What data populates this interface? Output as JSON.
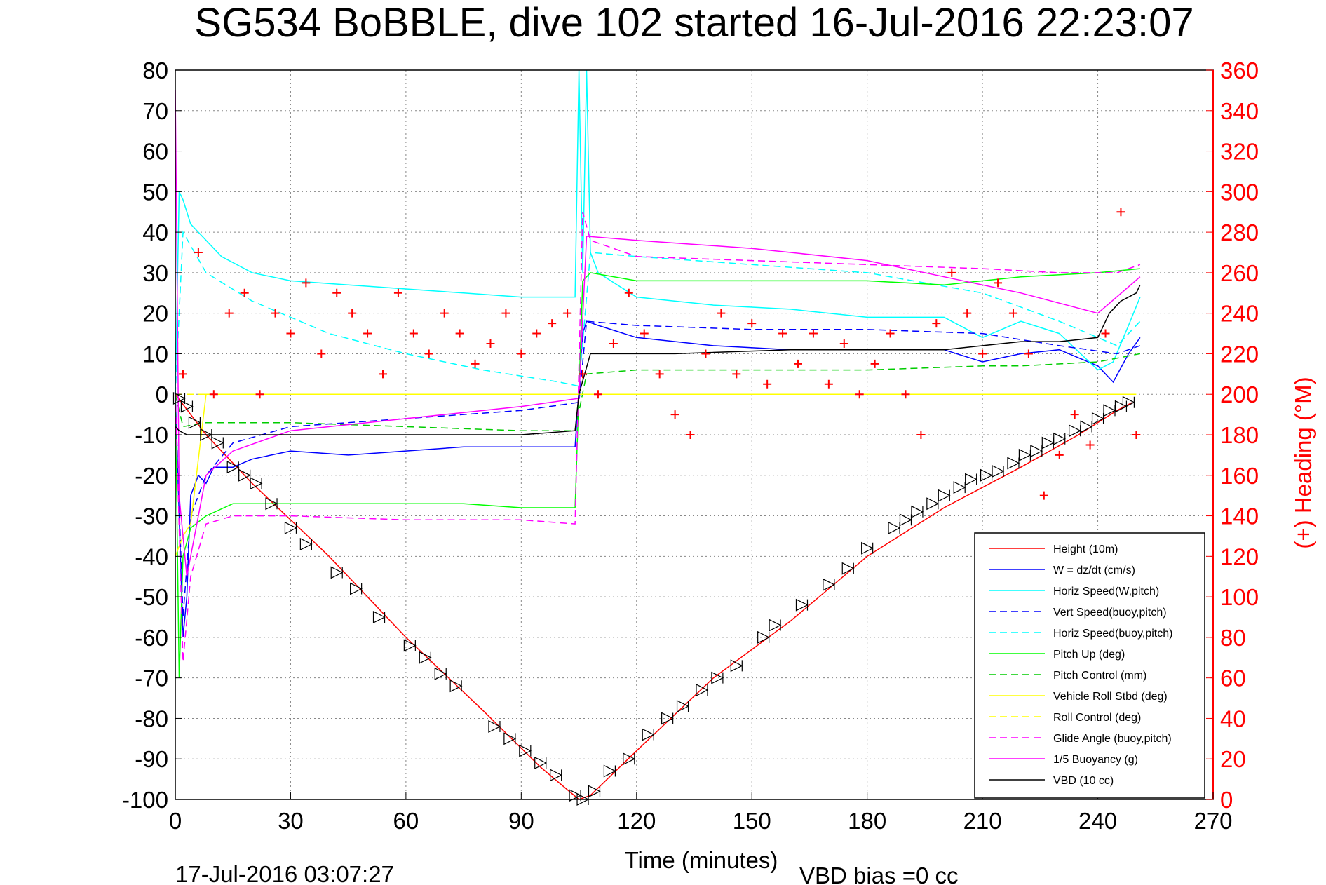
{
  "chart_data": {
    "type": "line",
    "title": "SG534 BoBBLE, dive 102 started 16-Jul-2016 22:23:07",
    "xlabel": "Time (minutes)",
    "ylabel_right": "(+) Heading (°M)",
    "footer_left": "17-Jul-2016 03:07:27",
    "footer_right": "VBD bias =0 cc",
    "xlim": [
      0,
      270
    ],
    "ylim": [
      -100,
      80
    ],
    "ylim_right": [
      0,
      360
    ],
    "x_ticks": [
      "0",
      "30",
      "60",
      "90",
      "120",
      "150",
      "180",
      "210",
      "240",
      "270"
    ],
    "y_ticks": [
      "80",
      "70",
      "60",
      "50",
      "40",
      "30",
      "20",
      "10",
      "0",
      "-10",
      "-20",
      "-30",
      "-40",
      "-50",
      "-60",
      "-70",
      "-80",
      "-90",
      "-100"
    ],
    "y_ticks_right": [
      "360",
      "340",
      "320",
      "300",
      "280",
      "260",
      "240",
      "220",
      "200",
      "180",
      "160",
      "140",
      "120",
      "100",
      "80",
      "60",
      "40",
      "20",
      "0"
    ],
    "grid": true,
    "legend_position": "bottom-right",
    "series": [
      {
        "name": "Height (10m)",
        "color": "#ff0000",
        "style": "solid",
        "x": [
          0,
          8,
          20,
          40,
          60,
          80,
          95,
          105,
          108,
          120,
          140,
          160,
          180,
          200,
          220,
          235,
          245,
          249
        ],
        "y": [
          0,
          -10,
          -22,
          -40,
          -60,
          -78,
          -92,
          -100,
          -99,
          -88,
          -70,
          -56,
          -40,
          -28,
          -18,
          -10,
          -4,
          -2
        ]
      },
      {
        "name": "W = dz/dt (cm/s)",
        "color": "#0000ff",
        "style": "solid",
        "x": [
          0,
          1,
          2,
          3,
          4,
          6,
          8,
          10,
          15,
          20,
          30,
          45,
          60,
          75,
          90,
          104,
          106,
          107,
          110,
          120,
          140,
          160,
          180,
          200,
          210,
          220,
          230,
          240,
          244,
          248,
          251
        ],
        "y": [
          0,
          -30,
          -60,
          -50,
          -25,
          -20,
          -22,
          -18,
          -18,
          -16,
          -14,
          -15,
          -14,
          -13,
          -13,
          -13,
          15,
          18,
          17,
          14,
          12,
          11,
          11,
          11,
          8,
          10,
          11,
          7,
          3,
          10,
          14
        ]
      },
      {
        "name": "Horiz Speed(W,pitch)",
        "color": "#00ffff",
        "style": "solid",
        "x": [
          0,
          1,
          2,
          4,
          8,
          12,
          20,
          30,
          45,
          60,
          75,
          90,
          104,
          105,
          106,
          107,
          108,
          110,
          120,
          140,
          160,
          180,
          200,
          210,
          220,
          230,
          240,
          244,
          248,
          251
        ],
        "y": [
          0,
          50,
          48,
          42,
          38,
          34,
          30,
          28,
          27,
          26,
          25,
          24,
          24,
          80,
          30,
          80,
          35,
          30,
          24,
          22,
          21,
          19,
          19,
          14,
          18,
          15,
          6,
          8,
          17,
          24
        ]
      },
      {
        "name": "Vert Speed(buoy,pitch)",
        "color": "#0000ff",
        "style": "dashed",
        "x": [
          0,
          2,
          4,
          8,
          15,
          30,
          60,
          90,
          105,
          107,
          120,
          150,
          180,
          210,
          230,
          245,
          251
        ],
        "y": [
          0,
          -55,
          -30,
          -20,
          -12,
          -8,
          -6,
          -4,
          -2,
          18,
          17,
          16,
          16,
          15,
          12,
          10,
          12
        ]
      },
      {
        "name": "Horiz Speed(buoy,pitch)",
        "color": "#00ffff",
        "style": "dashed",
        "x": [
          0,
          2,
          8,
          20,
          40,
          60,
          80,
          100,
          105,
          108,
          120,
          150,
          180,
          210,
          230,
          245,
          251
        ],
        "y": [
          0,
          40,
          30,
          23,
          15,
          10,
          6,
          3,
          2,
          35,
          34,
          32,
          30,
          25,
          18,
          12,
          18
        ]
      },
      {
        "name": "Pitch Up (deg)",
        "color": "#00ff00",
        "style": "solid",
        "x": [
          0,
          1,
          2,
          4,
          8,
          15,
          30,
          45,
          60,
          75,
          90,
          104,
          106,
          108,
          120,
          150,
          180,
          200,
          220,
          240,
          251
        ],
        "y": [
          0,
          -70,
          -40,
          -33,
          -30,
          -27,
          -27,
          -27,
          -27,
          -27,
          -28,
          -28,
          28,
          30,
          28,
          28,
          28,
          27,
          29,
          30,
          31
        ]
      },
      {
        "name": "Pitch Control (mm)",
        "color": "#00cc00",
        "style": "dashed",
        "x": [
          0,
          2,
          8,
          30,
          60,
          90,
          104,
          107,
          120,
          150,
          180,
          210,
          220,
          240,
          251
        ],
        "y": [
          0,
          -8,
          -7,
          -7,
          -8,
          -9,
          -9,
          5,
          6,
          6,
          6,
          7,
          7,
          8,
          10
        ]
      },
      {
        "name": "Vehicle Roll Stbd (deg)",
        "color": "#ffff00",
        "style": "solid",
        "x": [
          0,
          2,
          4,
          8,
          30,
          60,
          90,
          105,
          110,
          150,
          180,
          200,
          220,
          240,
          250
        ],
        "y": [
          -40,
          -35,
          -32,
          0,
          0,
          0,
          0,
          0,
          0,
          0,
          0,
          0,
          0,
          0,
          0
        ]
      },
      {
        "name": "Roll Control (deg)",
        "color": "#ffff00",
        "style": "dashed",
        "x": [
          0,
          30,
          60,
          90,
          105,
          120,
          150,
          180,
          210,
          240,
          250
        ],
        "y": [
          0,
          0,
          0,
          0,
          0,
          0,
          0,
          0,
          0,
          0,
          0
        ]
      },
      {
        "name": "Glide Angle (buoy,pitch)",
        "color": "#ff00ff",
        "style": "dashed",
        "x": [
          0,
          2,
          4,
          8,
          15,
          30,
          60,
          90,
          104,
          106,
          108,
          120,
          150,
          180,
          210,
          230,
          245,
          251
        ],
        "y": [
          0,
          -66,
          -45,
          -32,
          -30,
          -30,
          -31,
          -31,
          -32,
          45,
          38,
          34,
          33,
          32,
          31,
          30,
          30,
          32
        ]
      },
      {
        "name": "1/5 Buoyancy (g)",
        "color": "#ff00ff",
        "style": "solid",
        "x": [
          0,
          1,
          3,
          8,
          15,
          30,
          60,
          90,
          105,
          107,
          120,
          150,
          180,
          200,
          220,
          240,
          251
        ],
        "y": [
          75,
          -25,
          -45,
          -20,
          -14,
          -9,
          -6,
          -3,
          -1,
          39,
          38,
          36,
          33,
          29,
          25,
          20,
          29
        ]
      },
      {
        "name": "VBD (10 cc)",
        "color": "#000000",
        "style": "solid",
        "x": [
          0,
          1,
          3,
          8,
          30,
          60,
          90,
          104,
          105,
          108,
          130,
          160,
          180,
          200,
          210,
          220,
          230,
          240,
          243,
          246,
          250,
          251
        ],
        "y": [
          -8,
          -9,
          -10,
          -10,
          -10,
          -10,
          -10,
          -9,
          0,
          10,
          10,
          11,
          11,
          11,
          12,
          13,
          13,
          14,
          20,
          23,
          25,
          27
        ]
      },
      {
        "name": "Heading",
        "color": "#ff0000",
        "style": "markers-plus",
        "axis": "right",
        "x": [
          2,
          6,
          10,
          14,
          18,
          22,
          26,
          30,
          34,
          38,
          42,
          46,
          50,
          54,
          58,
          62,
          66,
          70,
          74,
          78,
          82,
          86,
          90,
          94,
          98,
          102,
          106,
          110,
          114,
          118,
          122,
          126,
          130,
          134,
          138,
          142,
          146,
          150,
          154,
          158,
          162,
          166,
          170,
          174,
          178,
          182,
          186,
          190,
          194,
          198,
          202,
          206,
          210,
          214,
          218,
          222,
          226,
          230,
          234,
          238,
          242,
          246,
          250
        ],
        "y": [
          210,
          270,
          200,
          240,
          250,
          200,
          240,
          230,
          255,
          220,
          250,
          240,
          230,
          210,
          250,
          230,
          220,
          240,
          230,
          215,
          225,
          240,
          220,
          230,
          235,
          240,
          210,
          200,
          225,
          250,
          230,
          210,
          190,
          180,
          220,
          240,
          210,
          235,
          205,
          230,
          215,
          230,
          205,
          225,
          200,
          215,
          230,
          200,
          180,
          235,
          260,
          240,
          220,
          255,
          240,
          220,
          150,
          170,
          190,
          175,
          230,
          290,
          180
        ]
      }
    ],
    "markers": {
      "name": "Height markers",
      "shape": "triangle",
      "color": "#000000",
      "x": [
        1,
        3,
        5,
        8,
        11,
        15,
        18,
        21,
        25,
        30,
        34,
        42,
        47,
        53,
        61,
        65,
        69,
        73,
        83,
        87,
        91,
        95,
        99,
        104,
        106,
        109,
        113,
        118,
        123,
        128,
        132,
        137,
        141,
        146,
        153,
        156,
        163,
        170,
        175,
        180,
        187,
        190,
        193,
        197,
        200,
        204,
        207,
        211,
        214,
        218,
        221,
        224,
        227,
        230,
        234,
        237,
        240,
        243,
        246,
        248
      ],
      "y": [
        -1,
        -3,
        -7,
        -10,
        -12,
        -18,
        -20,
        -22,
        -27,
        -33,
        -37,
        -44,
        -48,
        -55,
        -62,
        -65,
        -69,
        -72,
        -82,
        -85,
        -88,
        -91,
        -94,
        -99,
        -100,
        -98,
        -93,
        -90,
        -84,
        -80,
        -77,
        -73,
        -70,
        -67,
        -60,
        -57,
        -52,
        -47,
        -43,
        -38,
        -33,
        -31,
        -29,
        -27,
        -25,
        -23,
        -21,
        -20,
        -19,
        -17,
        -15,
        -14,
        -12,
        -11,
        -9,
        -8,
        -6,
        -4,
        -3,
        -2
      ]
    }
  }
}
